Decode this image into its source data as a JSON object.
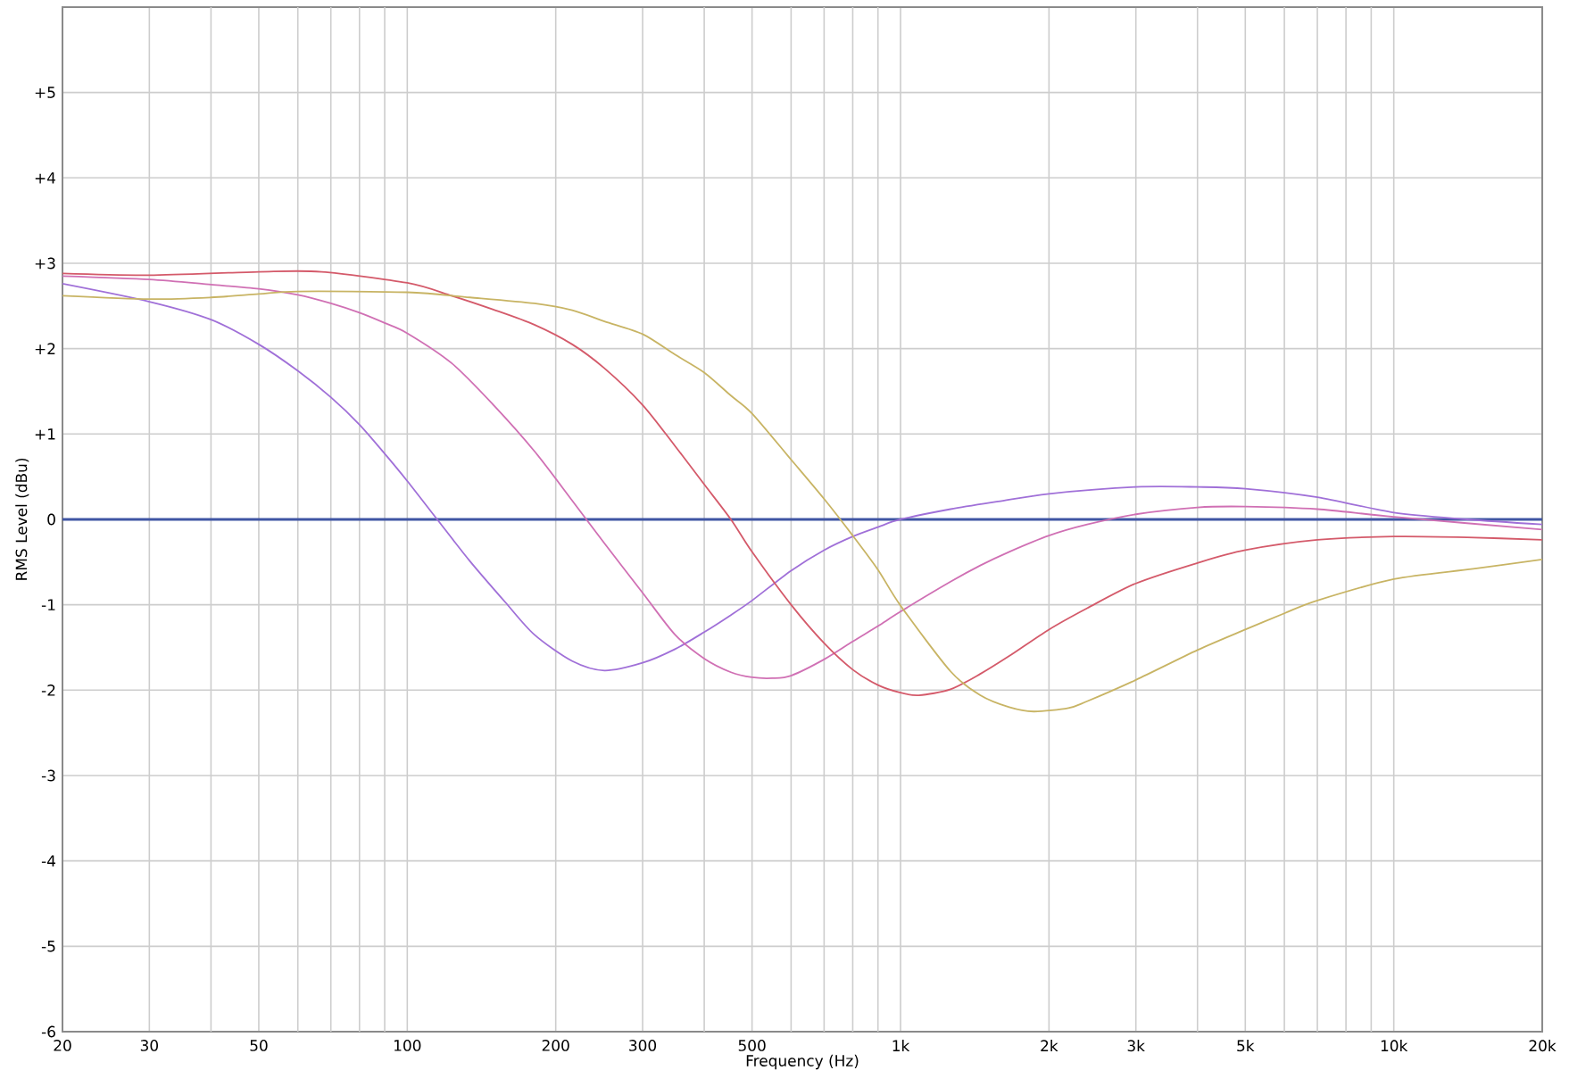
{
  "chart_data": {
    "type": "line",
    "xlabel": "Frequency (Hz)",
    "ylabel": "RMS Level (dBu)",
    "log": "x",
    "grid": true,
    "marker": "none",
    "line_style": "solid",
    "xlim": [
      20,
      20000
    ],
    "ylim": [
      -6,
      6
    ],
    "xticks": [
      20,
      30,
      {
        "value": 40,
        "label": null
      },
      50,
      {
        "value": 60,
        "label": null
      },
      {
        "value": 70,
        "label": null
      },
      {
        "value": 80,
        "label": null
      },
      {
        "value": 90,
        "label": null
      },
      100,
      200,
      300,
      {
        "value": 400,
        "label": null
      },
      500,
      {
        "value": 600,
        "label": null
      },
      {
        "value": 700,
        "label": null
      },
      {
        "value": 800,
        "label": null
      },
      {
        "value": 900,
        "label": null
      },
      {
        "value": 1000,
        "label": "1k"
      },
      {
        "value": 2000,
        "label": "2k"
      },
      {
        "value": 3000,
        "label": "3k"
      },
      {
        "value": 4000,
        "label": null
      },
      {
        "value": 5000,
        "label": "5k"
      },
      {
        "value": 6000,
        "label": null
      },
      {
        "value": 7000,
        "label": null
      },
      {
        "value": 8000,
        "label": null
      },
      {
        "value": 9000,
        "label": null
      },
      {
        "value": 10000,
        "label": "10k"
      },
      {
        "value": 20000,
        "label": "20k"
      }
    ],
    "yticks": [
      -6,
      -5,
      -4,
      -3,
      -2,
      -1,
      0,
      {
        "value": 1,
        "label": "+1"
      },
      {
        "value": 2,
        "label": "+2"
      },
      {
        "value": 3,
        "label": "+3"
      },
      {
        "value": 4,
        "label": "+4"
      },
      {
        "value": 5,
        "label": "+5"
      }
    ],
    "ref_lines": [
      {
        "axis": "y",
        "value": 0,
        "color": "#3f55a3"
      }
    ],
    "series": [
      {
        "color": "#a070d8",
        "x": [
          20,
          30,
          40,
          50,
          60,
          70,
          80,
          90,
          100,
          115,
          134,
          158,
          181,
          216,
          251,
          300,
          349,
          400,
          453,
          500,
          600,
          700,
          800,
          900,
          1000,
          1263,
          1577,
          2000,
          3000,
          4000,
          5000,
          7000,
          10000,
          14090,
          20000
        ],
        "values": [
          2.76,
          2.55,
          2.34,
          2.05,
          1.74,
          1.43,
          1.11,
          0.77,
          0.45,
          0.0,
          -0.49,
          -0.97,
          -1.35,
          -1.66,
          -1.77,
          -1.68,
          -1.52,
          -1.32,
          -1.12,
          -0.95,
          -0.6,
          -0.36,
          -0.2,
          -0.09,
          0.0,
          0.12,
          0.21,
          0.3,
          0.38,
          0.38,
          0.36,
          0.26,
          0.08,
          0.0,
          -0.06
        ]
      },
      {
        "color": "#d070b4",
        "x": [
          20,
          30,
          40,
          50,
          60,
          70,
          80,
          90,
          100,
          123,
          149,
          181,
          216,
          251,
          300,
          349,
          400,
          453,
          500,
          550,
          600,
          700,
          800,
          900,
          1000,
          1263,
          1451,
          1661,
          2000,
          2390,
          3000,
          4000,
          5000,
          7000,
          10000,
          20000
        ],
        "values": [
          2.85,
          2.81,
          2.75,
          2.7,
          2.63,
          2.53,
          2.42,
          2.3,
          2.18,
          1.83,
          1.35,
          0.8,
          0.22,
          -0.28,
          -0.86,
          -1.35,
          -1.63,
          -1.79,
          -1.85,
          -1.86,
          -1.83,
          -1.64,
          -1.43,
          -1.25,
          -1.08,
          -0.73,
          -0.54,
          -0.38,
          -0.19,
          -0.06,
          0.06,
          0.14,
          0.15,
          0.12,
          0.03,
          -0.12
        ]
      },
      {
        "color": "#d45a6a",
        "x": [
          20,
          30,
          50,
          67,
          100,
          123,
          149,
          181,
          216,
          251,
          300,
          349,
          400,
          453,
          500,
          600,
          700,
          800,
          900,
          1000,
          1090,
          1263,
          1451,
          1661,
          2000,
          2390,
          3000,
          4000,
          5000,
          7000,
          10000,
          14090,
          20000
        ],
        "values": [
          2.88,
          2.86,
          2.9,
          2.9,
          2.77,
          2.62,
          2.46,
          2.28,
          2.05,
          1.77,
          1.34,
          0.86,
          0.41,
          0.0,
          -0.38,
          -1.0,
          -1.45,
          -1.76,
          -1.94,
          -2.03,
          -2.06,
          -1.99,
          -1.81,
          -1.6,
          -1.29,
          -1.04,
          -0.75,
          -0.51,
          -0.36,
          -0.24,
          -0.2,
          -0.21,
          -0.24
        ]
      },
      {
        "color": "#c8b464",
        "x": [
          20,
          30,
          40,
          50,
          60,
          100,
          134,
          181,
          216,
          251,
          300,
          349,
          400,
          453,
          500,
          600,
          700,
          800,
          900,
          1000,
          1263,
          1451,
          1661,
          1862,
          2190,
          2390,
          3000,
          4000,
          5000,
          6000,
          7000,
          10000,
          14490,
          20000
        ],
        "values": [
          2.62,
          2.58,
          2.6,
          2.64,
          2.67,
          2.66,
          2.6,
          2.53,
          2.45,
          2.32,
          2.17,
          1.93,
          1.72,
          1.45,
          1.24,
          0.7,
          0.24,
          -0.19,
          -0.59,
          -1.01,
          -1.78,
          -2.06,
          -2.2,
          -2.25,
          -2.21,
          -2.13,
          -1.88,
          -1.53,
          -1.29,
          -1.1,
          -0.95,
          -0.7,
          -0.58,
          -0.47
        ]
      }
    ]
  }
}
